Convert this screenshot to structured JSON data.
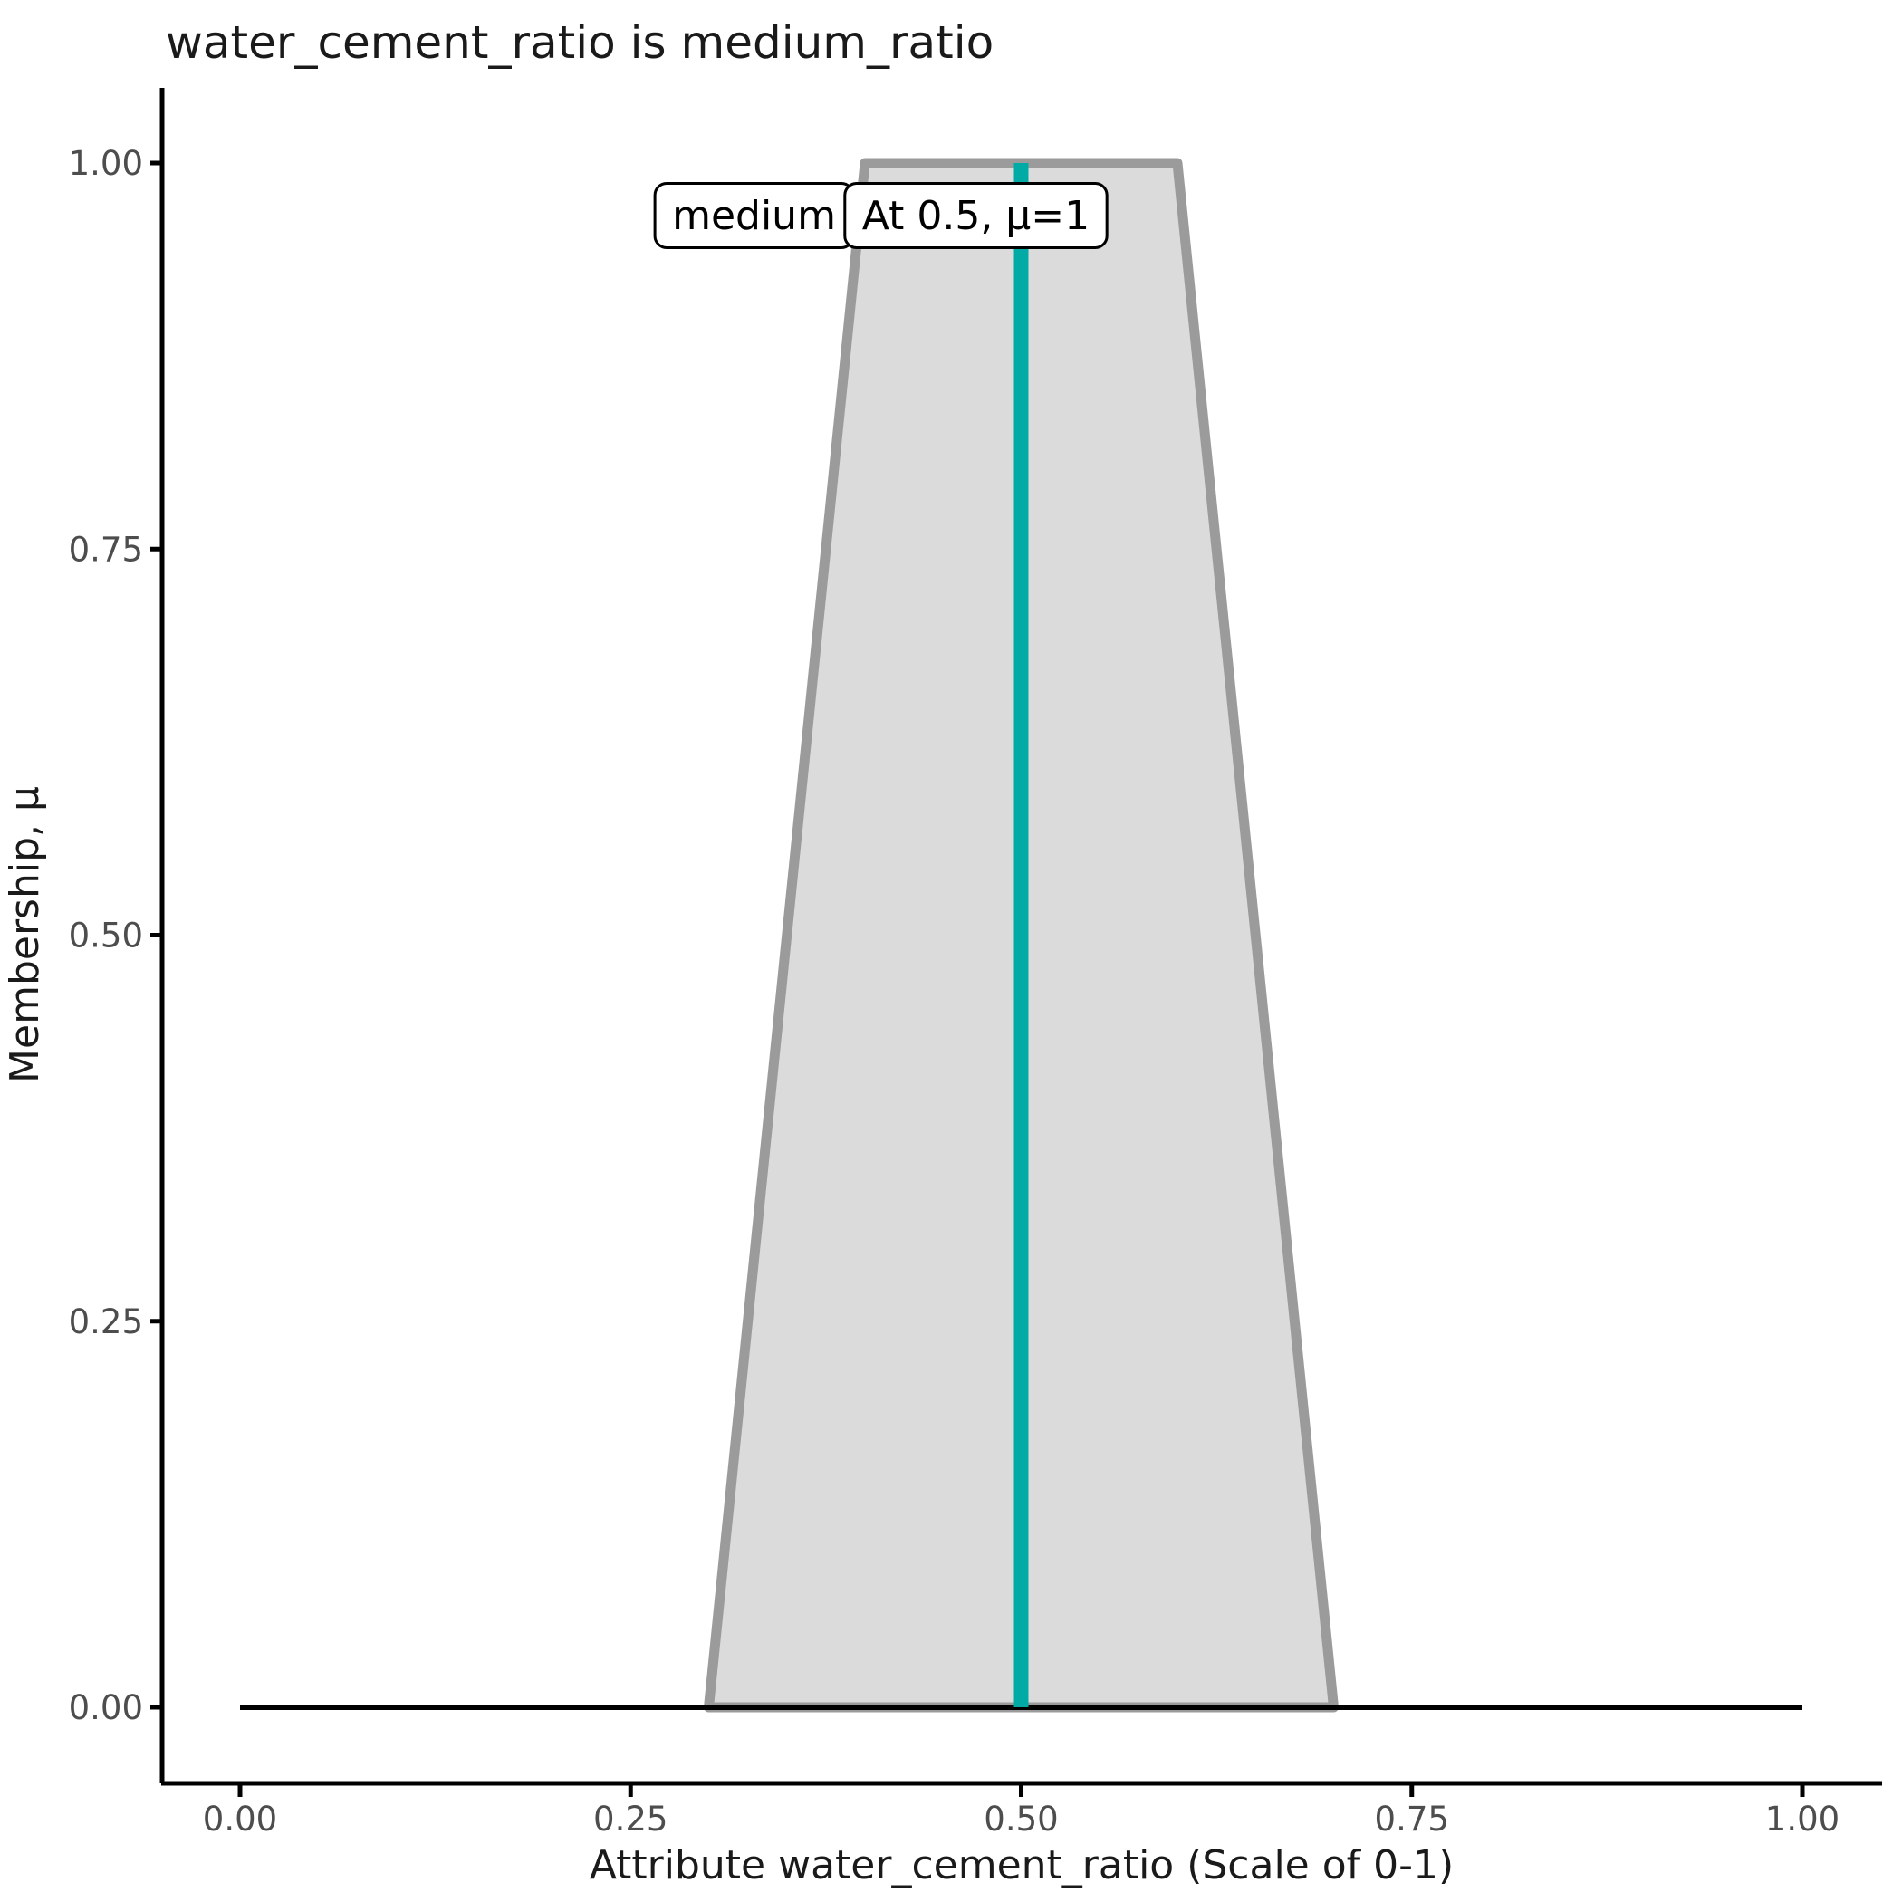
{
  "figure": {
    "background": "#FFFFFF"
  },
  "chart_data": {
    "type": "area",
    "title": "water_cement_ratio is medium_ratio",
    "xlabel": "Attribute water_cement_ratio (Scale of 0-1)",
    "ylabel": "Membership, μ",
    "xlim": [
      0,
      1
    ],
    "ylim": [
      0,
      1
    ],
    "grid": false,
    "legend": false,
    "x_tick_values": [
      0,
      0.25,
      0.5,
      0.75,
      1.0
    ],
    "x_tick_labels": [
      "0.00",
      "0.25",
      "0.50",
      "0.75",
      "1.00"
    ],
    "y_tick_values": [
      0,
      0.25,
      0.5,
      0.75,
      1.0
    ],
    "y_tick_labels": [
      "0.00",
      "0.25",
      "0.50",
      "0.75",
      "1.00"
    ],
    "series": [
      {
        "name": "membership-polygon-medium-ratio",
        "kind": "polygon",
        "points_x": [
          0.3,
          0.4,
          0.6,
          0.7
        ],
        "points_y": [
          0,
          1,
          1,
          0
        ],
        "fill": "#DBDBDB",
        "stroke": "#9B9B9B",
        "stroke_width": 11
      },
      {
        "name": "zero-membership-baseline",
        "kind": "line",
        "points_x": [
          0,
          1
        ],
        "points_y": [
          0,
          0
        ],
        "stroke": "#000000",
        "stroke_width": 6
      },
      {
        "name": "input-marker-line",
        "kind": "vline",
        "x": 0.5,
        "y_from": 0,
        "y_to": 1,
        "stroke": "#00ABA6",
        "stroke_width": 16
      }
    ],
    "annotations": [
      {
        "text": "medium",
        "x": 0.329,
        "y": 0.966
      },
      {
        "text": "At 0.5, μ=1",
        "x": 0.471,
        "y": 0.966
      }
    ],
    "colors": {
      "tick_label": "#4D4D4D",
      "axis_line": "#000000",
      "text": "#1A1A1A"
    }
  }
}
